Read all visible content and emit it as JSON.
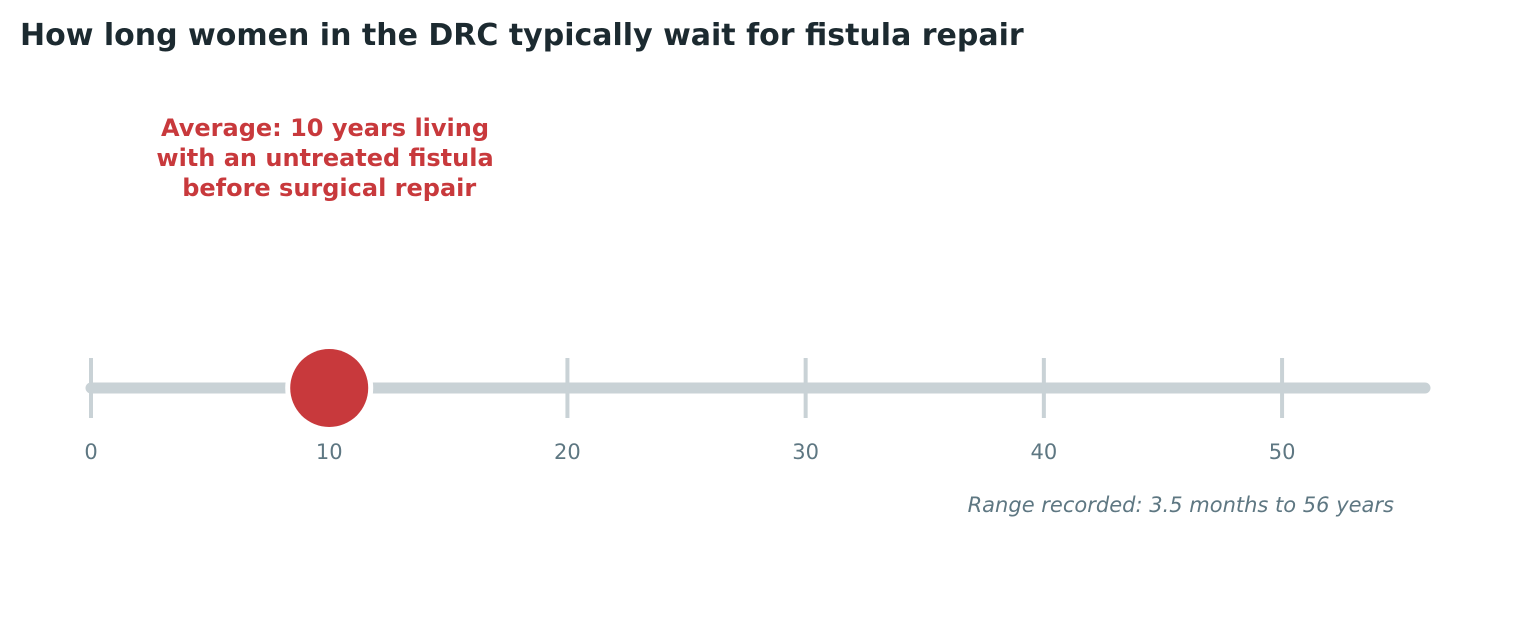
{
  "chart_data": {
    "type": "scatter",
    "title": "How long women in the DRC typically wait for fistula repair",
    "xlabel": "",
    "ylabel": "",
    "xlim": [
      0,
      56
    ],
    "ticks": [
      0,
      10,
      20,
      30,
      40,
      50
    ],
    "tick_labels": [
      "0",
      "10",
      "20",
      "30",
      "40",
      "50"
    ],
    "range": [
      0.29,
      56
    ],
    "highlight": {
      "x": 10
    },
    "annotation": {
      "lines": [
        "Average: 10 years living",
        "with an untreated fistula",
        "before surgical repair"
      ]
    },
    "range_note": "Range recorded: 3.5 months to 56 years",
    "grid": false
  },
  "colors": {
    "title": "#1c2a30",
    "accent": "#c8393c",
    "axis": "#c9d2d6",
    "tick_text": "#5e7782",
    "note_text": "#5e7782"
  }
}
